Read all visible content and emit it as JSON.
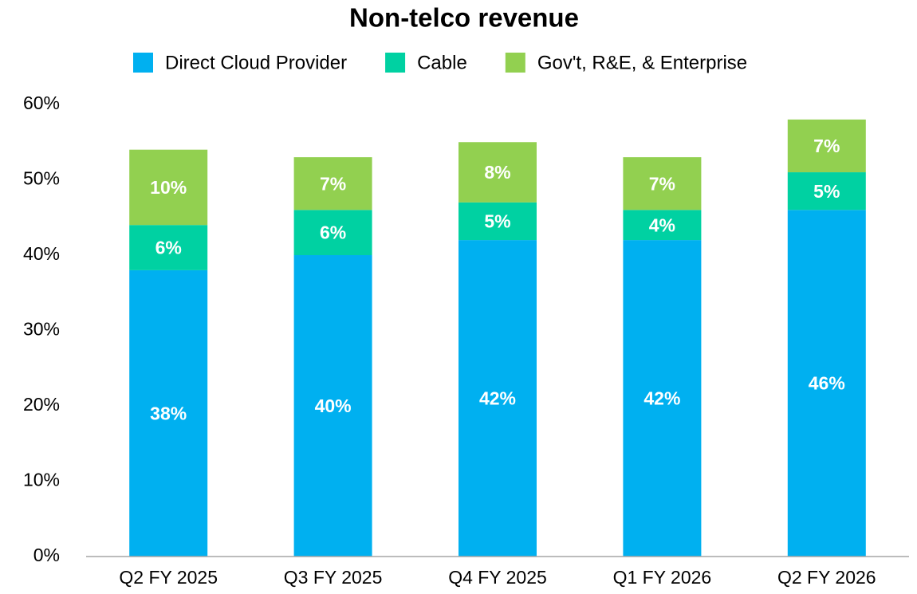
{
  "chart_data": {
    "type": "bar",
    "stacked": true,
    "title": "Non-telco revenue",
    "categories": [
      "Q2 FY 2025",
      "Q3 FY 2025",
      "Q4 FY 2025",
      "Q1 FY 2026",
      "Q2 FY 2026"
    ],
    "series": [
      {
        "name": "Direct Cloud Provider",
        "color": "#00b0f0",
        "values": [
          38,
          40,
          42,
          42,
          46
        ],
        "value_labels": [
          "38%",
          "40%",
          "42%",
          "42%",
          "46%"
        ]
      },
      {
        "name": "Cable",
        "color": "#00d1a2",
        "values": [
          6,
          6,
          5,
          4,
          5
        ],
        "value_labels": [
          "6%",
          "6%",
          "5%",
          "4%",
          "5%"
        ]
      },
      {
        "name": "Gov't, R&E, & Enterprise",
        "color": "#92d050",
        "values": [
          10,
          7,
          8,
          7,
          7
        ],
        "value_labels": [
          "10%",
          "7%",
          "8%",
          "7%",
          "7%"
        ]
      }
    ],
    "ylim": [
      0,
      60
    ],
    "yticks": [
      {
        "value": 0,
        "label": "0%"
      },
      {
        "value": 10,
        "label": "10%"
      },
      {
        "value": 20,
        "label": "20%"
      },
      {
        "value": 30,
        "label": "30%"
      },
      {
        "value": 40,
        "label": "40%"
      },
      {
        "value": 50,
        "label": "50%"
      },
      {
        "value": 60,
        "label": "60%"
      }
    ],
    "grid": false,
    "legend": "top"
  }
}
